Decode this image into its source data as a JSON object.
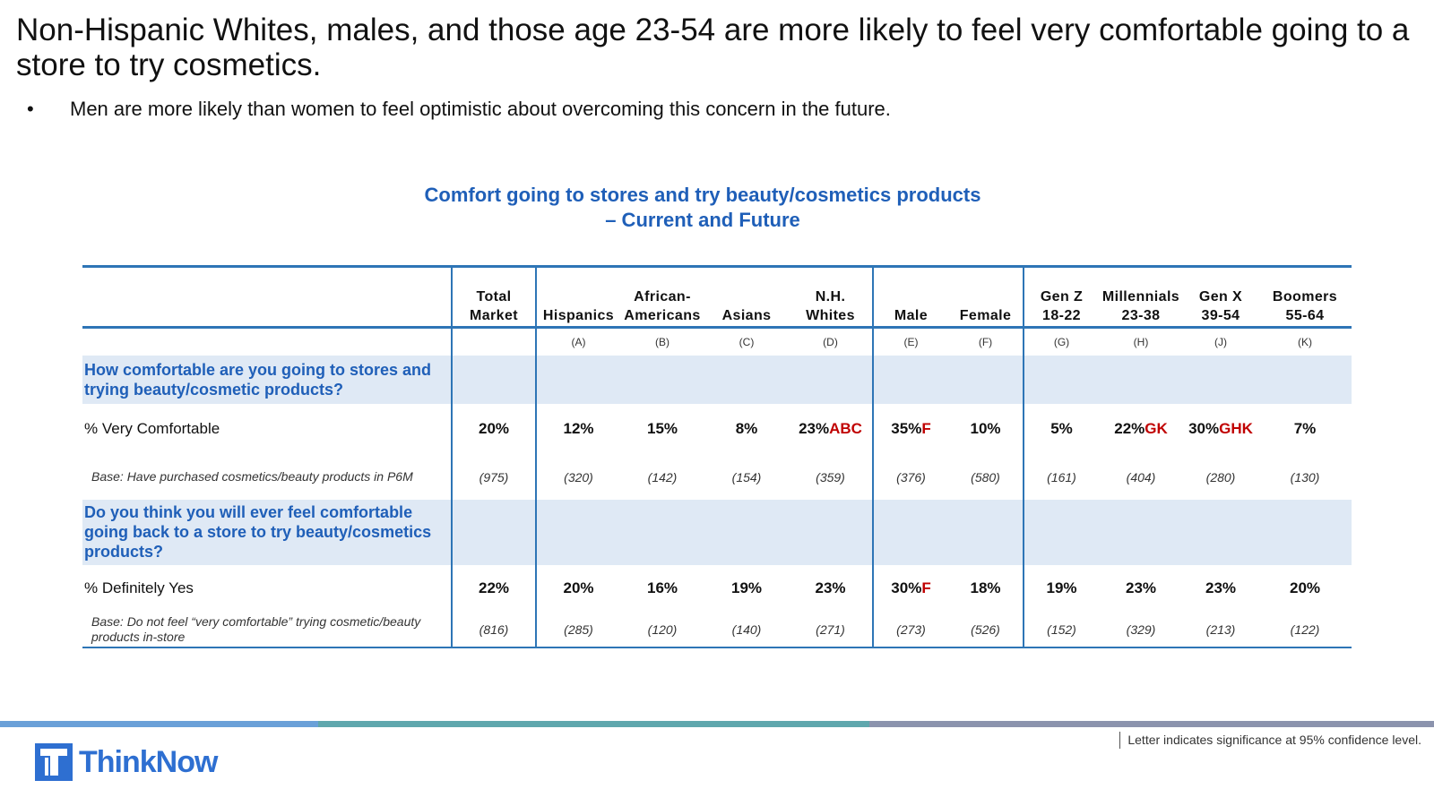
{
  "headline": "Non-Hispanic Whites, males, and those age 23-54 are more likely to feel very comfortable going to a store to try cosmetics.",
  "bullet": "Men are more likely than women to feel optimistic about overcoming this concern in the future.",
  "bullet_symbol": "•",
  "table_title": {
    "line1": "Comfort going to stores and try beauty/cosmetics products",
    "line2": "– Current and Future"
  },
  "columns": [
    {
      "line1": "Total",
      "line2": "Market",
      "letter": ""
    },
    {
      "line1": "",
      "line2": "Hispanics",
      "letter": "(A)"
    },
    {
      "line1": "African-",
      "line2": "Americans",
      "letter": "(B)"
    },
    {
      "line1": "",
      "line2": "Asians",
      "letter": "(C)"
    },
    {
      "line1": "N.H.",
      "line2": "Whites",
      "letter": "(D)"
    },
    {
      "line1": "",
      "line2": "Male",
      "letter": "(E)"
    },
    {
      "line1": "",
      "line2": "Female",
      "letter": "(F)"
    },
    {
      "line1": "Gen Z",
      "line2": "18-22",
      "letter": "(G)"
    },
    {
      "line1": "Millennials",
      "line2": "23-38",
      "letter": "(H)"
    },
    {
      "line1": "Gen X",
      "line2": "39-54",
      "letter": "(J)"
    },
    {
      "line1": "Boomers",
      "line2": "55-64",
      "letter": "(K)"
    }
  ],
  "sections": [
    {
      "question": "How comfortable are you going to stores and trying beauty/cosmetic products?",
      "metric_label": "% Very Comfortable",
      "values": [
        {
          "v": "20%",
          "sig": ""
        },
        {
          "v": "12%",
          "sig": ""
        },
        {
          "v": "15%",
          "sig": ""
        },
        {
          "v": "8%",
          "sig": ""
        },
        {
          "v": "23%",
          "sig": "ABC"
        },
        {
          "v": "35%",
          "sig": "F"
        },
        {
          "v": "10%",
          "sig": ""
        },
        {
          "v": "5%",
          "sig": ""
        },
        {
          "v": "22%",
          "sig": "GK"
        },
        {
          "v": "30%",
          "sig": "GHK"
        },
        {
          "v": "7%",
          "sig": ""
        }
      ],
      "base_label": "Base: Have purchased cosmetics/beauty products in P6M",
      "bases": [
        "(975)",
        "(320)",
        "(142)",
        "(154)",
        "(359)",
        "(376)",
        "(580)",
        "(161)",
        "(404)",
        "(280)",
        "(130)"
      ]
    },
    {
      "question": "Do you think you will ever feel comfortable going back to a store to try beauty/cosmetics products?",
      "metric_label": "% Definitely Yes",
      "values": [
        {
          "v": "22%",
          "sig": ""
        },
        {
          "v": "20%",
          "sig": ""
        },
        {
          "v": "16%",
          "sig": ""
        },
        {
          "v": "19%",
          "sig": ""
        },
        {
          "v": "23%",
          "sig": ""
        },
        {
          "v": "30%",
          "sig": "F"
        },
        {
          "v": "18%",
          "sig": ""
        },
        {
          "v": "19%",
          "sig": ""
        },
        {
          "v": "23%",
          "sig": ""
        },
        {
          "v": "23%",
          "sig": ""
        },
        {
          "v": "20%",
          "sig": ""
        }
      ],
      "base_label": "Base: Do not feel “very comfortable” trying cosmetic/beauty products in-store",
      "bases": [
        "(816)",
        "(285)",
        "(120)",
        "(140)",
        "(271)",
        "(273)",
        "(526)",
        "(152)",
        "(329)",
        "(213)",
        "(122)"
      ]
    }
  ],
  "footer": {
    "logo_text": "ThinkNow",
    "note": "Letter indicates significance at 95% confidence level."
  },
  "colors": {
    "accent_blue": "#2e75b6",
    "title_blue": "#1f5fb8",
    "significance_red": "#c00000",
    "question_band": "#dfe9f5"
  }
}
